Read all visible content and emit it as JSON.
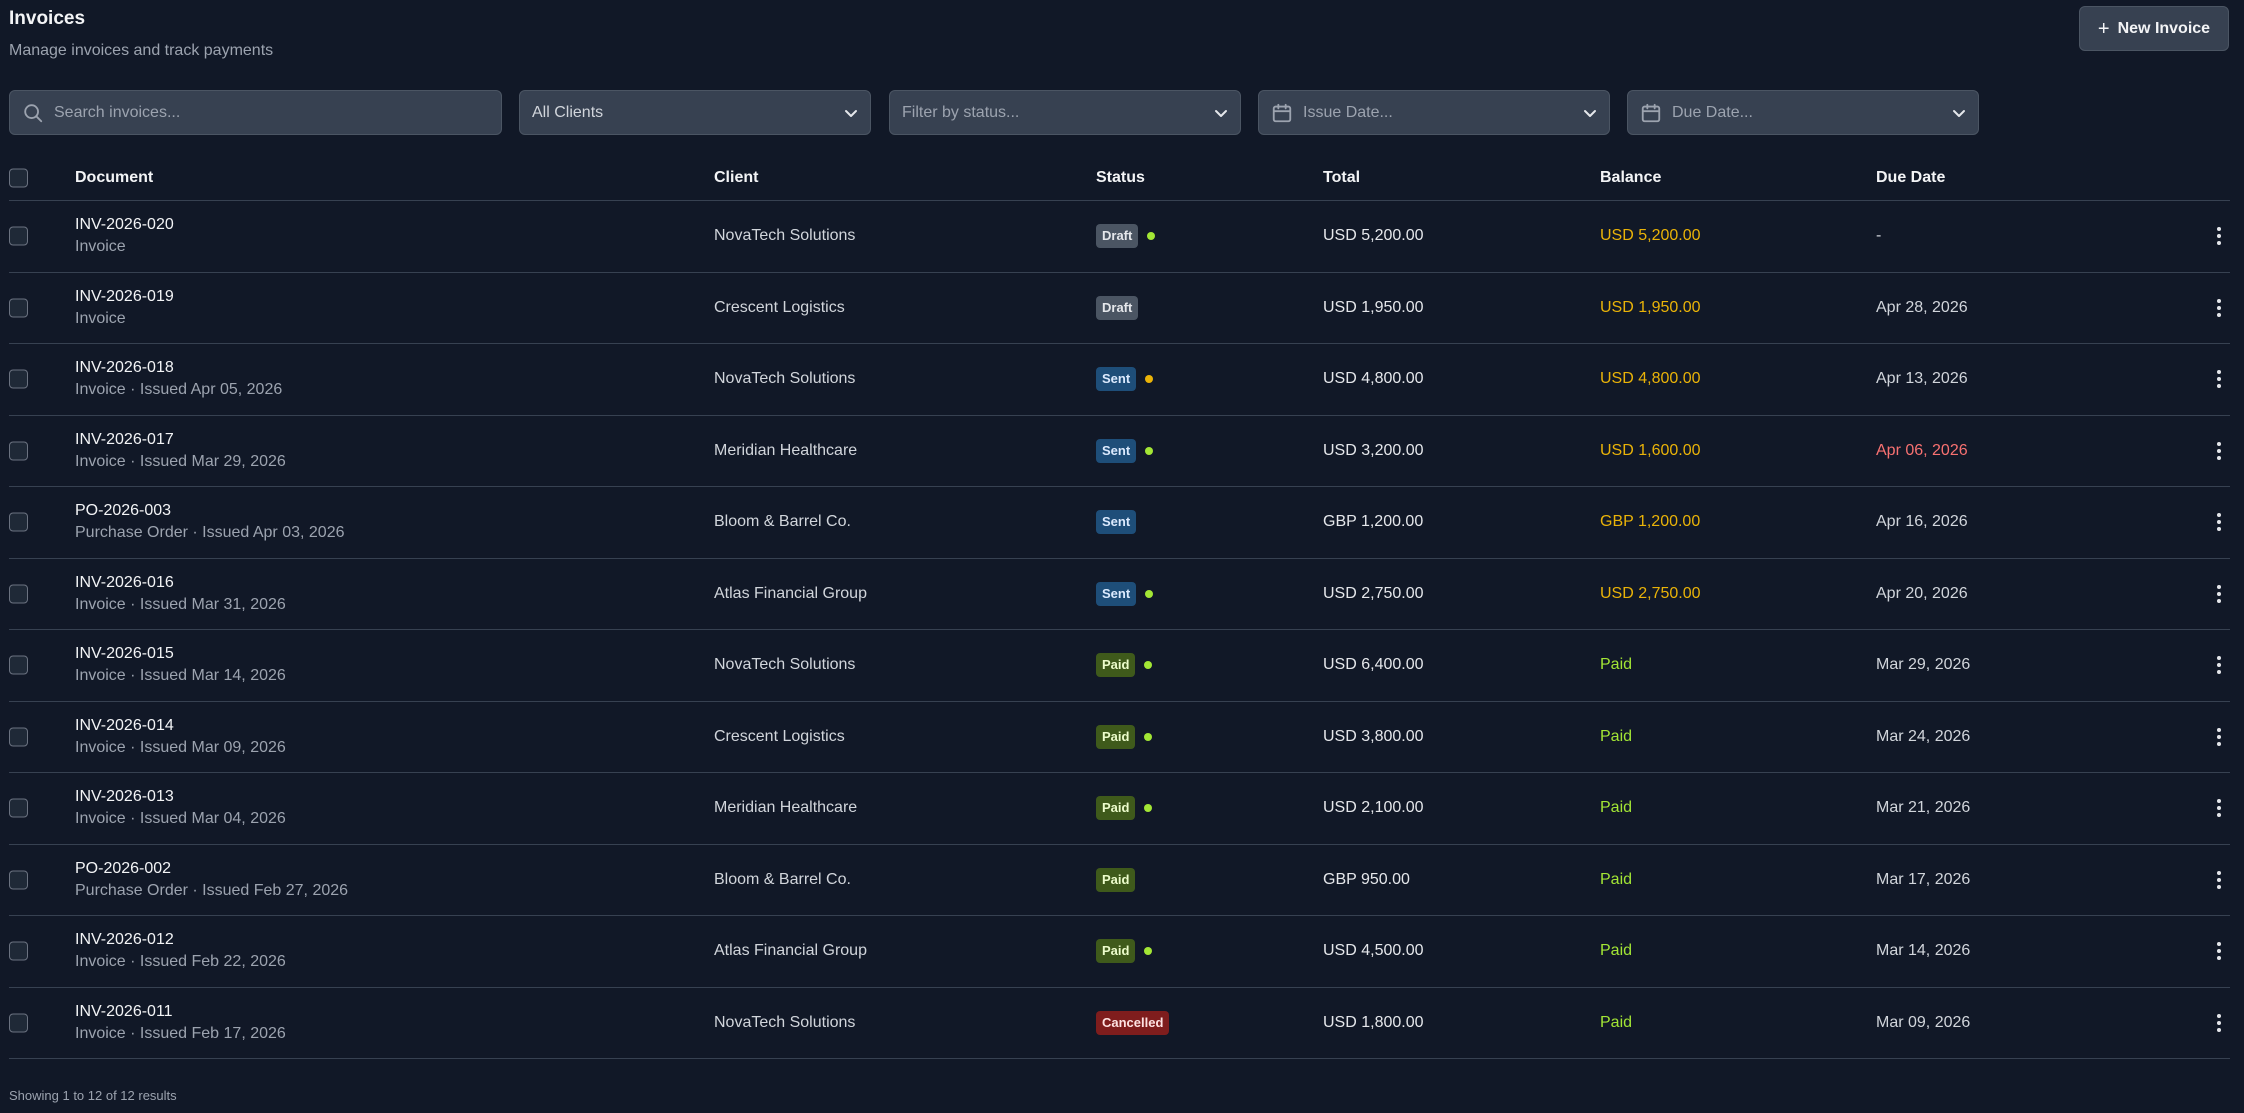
{
  "header": {
    "title": "Invoices",
    "subtitle": "Manage invoices and track payments",
    "new_button_label": "New Invoice"
  },
  "filters": {
    "search_placeholder": "Search invoices...",
    "clients_label": "All Clients",
    "status_label": "Filter by status...",
    "issue_date_label": "Issue Date...",
    "due_date_label": "Due Date..."
  },
  "table": {
    "columns": {
      "document": "Document",
      "client": "Client",
      "status": "Status",
      "total": "Total",
      "balance": "Balance",
      "due_date": "Due Date"
    },
    "rows": [
      {
        "id": "INV-2026-020",
        "sub": "Invoice",
        "client": "NovaTech Solutions",
        "status": "Draft",
        "status_kind": "draft",
        "dot": "#a3e635",
        "total": "USD 5,200.00",
        "balance": "USD 5,200.00",
        "balance_kind": "due",
        "due": "-",
        "due_kind": "normal"
      },
      {
        "id": "INV-2026-019",
        "sub": "Invoice",
        "client": "Crescent Logistics",
        "status": "Draft",
        "status_kind": "draft",
        "dot": "",
        "total": "USD 1,950.00",
        "balance": "USD 1,950.00",
        "balance_kind": "due",
        "due": "Apr 28, 2026",
        "due_kind": "normal"
      },
      {
        "id": "INV-2026-018",
        "sub": "Invoice · Issued Apr 05, 2026",
        "client": "NovaTech Solutions",
        "status": "Sent",
        "status_kind": "sent",
        "dot": "#eab308",
        "total": "USD 4,800.00",
        "balance": "USD 4,800.00",
        "balance_kind": "due",
        "due": "Apr 13, 2026",
        "due_kind": "normal"
      },
      {
        "id": "INV-2026-017",
        "sub": "Invoice · Issued Mar 29, 2026",
        "client": "Meridian Healthcare",
        "status": "Sent",
        "status_kind": "sent",
        "dot": "#a3e635",
        "total": "USD 3,200.00",
        "balance": "USD 1,600.00",
        "balance_kind": "due",
        "due": "Apr 06, 2026",
        "due_kind": "overdue"
      },
      {
        "id": "PO-2026-003",
        "sub": "Purchase Order · Issued Apr 03, 2026",
        "client": "Bloom & Barrel Co.",
        "status": "Sent",
        "status_kind": "sent",
        "dot": "",
        "total": "GBP 1,200.00",
        "balance": "GBP 1,200.00",
        "balance_kind": "due",
        "due": "Apr 16, 2026",
        "due_kind": "normal"
      },
      {
        "id": "INV-2026-016",
        "sub": "Invoice · Issued Mar 31, 2026",
        "client": "Atlas Financial Group",
        "status": "Sent",
        "status_kind": "sent",
        "dot": "#a3e635",
        "total": "USD 2,750.00",
        "balance": "USD 2,750.00",
        "balance_kind": "due",
        "due": "Apr 20, 2026",
        "due_kind": "normal"
      },
      {
        "id": "INV-2026-015",
        "sub": "Invoice · Issued Mar 14, 2026",
        "client": "NovaTech Solutions",
        "status": "Paid",
        "status_kind": "paid",
        "dot": "#a3e635",
        "total": "USD 6,400.00",
        "balance": "Paid",
        "balance_kind": "paid",
        "due": "Mar 29, 2026",
        "due_kind": "normal"
      },
      {
        "id": "INV-2026-014",
        "sub": "Invoice · Issued Mar 09, 2026",
        "client": "Crescent Logistics",
        "status": "Paid",
        "status_kind": "paid",
        "dot": "#a3e635",
        "total": "USD 3,800.00",
        "balance": "Paid",
        "balance_kind": "paid",
        "due": "Mar 24, 2026",
        "due_kind": "normal"
      },
      {
        "id": "INV-2026-013",
        "sub": "Invoice · Issued Mar 04, 2026",
        "client": "Meridian Healthcare",
        "status": "Paid",
        "status_kind": "paid",
        "dot": "#a3e635",
        "total": "USD 2,100.00",
        "balance": "Paid",
        "balance_kind": "paid",
        "due": "Mar 21, 2026",
        "due_kind": "normal"
      },
      {
        "id": "PO-2026-002",
        "sub": "Purchase Order · Issued Feb 27, 2026",
        "client": "Bloom & Barrel Co.",
        "status": "Paid",
        "status_kind": "paid",
        "dot": "",
        "total": "GBP 950.00",
        "balance": "Paid",
        "balance_kind": "paid",
        "due": "Mar 17, 2026",
        "due_kind": "normal"
      },
      {
        "id": "INV-2026-012",
        "sub": "Invoice · Issued Feb 22, 2026",
        "client": "Atlas Financial Group",
        "status": "Paid",
        "status_kind": "paid",
        "dot": "#a3e635",
        "total": "USD 4,500.00",
        "balance": "Paid",
        "balance_kind": "paid",
        "due": "Mar 14, 2026",
        "due_kind": "normal"
      },
      {
        "id": "INV-2026-011",
        "sub": "Invoice · Issued Feb 17, 2026",
        "client": "NovaTech Solutions",
        "status": "Cancelled",
        "status_kind": "cancelled",
        "dot": "",
        "total": "USD 1,800.00",
        "balance": "Paid",
        "balance_kind": "paid",
        "due": "Mar 09, 2026",
        "due_kind": "normal"
      }
    ]
  },
  "footer": {
    "summary": "Showing 1 to 12 of 12 results"
  }
}
